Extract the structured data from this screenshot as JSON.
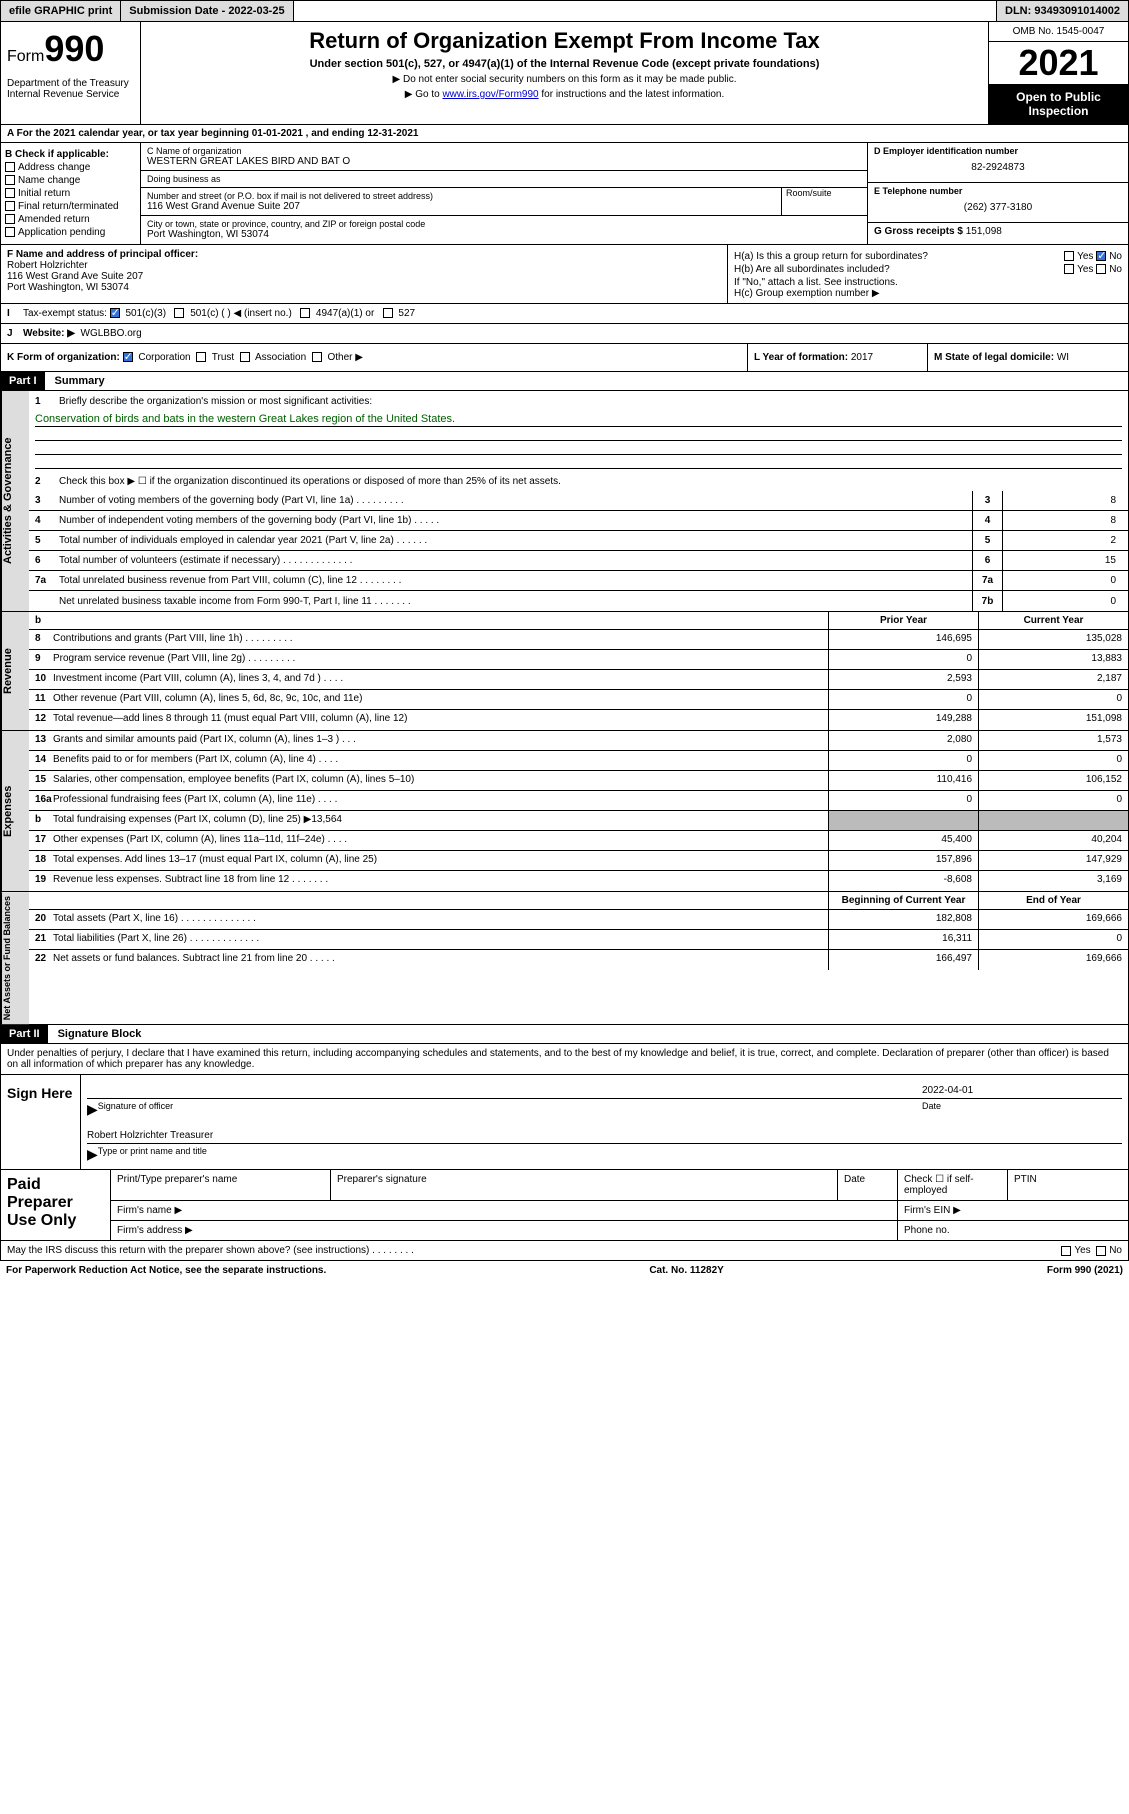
{
  "topbar": {
    "efile": "efile GRAPHIC print",
    "sub_label": "Submission Date - 2022-03-25",
    "dln": "DLN: 93493091014002"
  },
  "header": {
    "form_prefix": "Form",
    "form_num": "990",
    "dept": "Department of the Treasury Internal Revenue Service",
    "title": "Return of Organization Exempt From Income Tax",
    "sub": "Under section 501(c), 527, or 4947(a)(1) of the Internal Revenue Code (except private foundations)",
    "note1": "▶ Do not enter social security numbers on this form as it may be made public.",
    "note2_pre": "▶ Go to ",
    "note2_link": "www.irs.gov/Form990",
    "note2_post": " for instructions and the latest information.",
    "omb": "OMB No. 1545-0047",
    "year": "2021",
    "open": "Open to Public Inspection"
  },
  "row_a": "A For the 2021 calendar year, or tax year beginning 01-01-2021    , and ending 12-31-2021",
  "col_b": {
    "label": "B Check if applicable:",
    "opts": [
      "Address change",
      "Name change",
      "Initial return",
      "Final return/terminated",
      "Amended return",
      "Application pending"
    ]
  },
  "col_c": {
    "name_lbl": "C Name of organization",
    "name": "WESTERN GREAT LAKES BIRD AND BAT O",
    "dba_lbl": "Doing business as",
    "dba": "",
    "addr_lbl": "Number and street (or P.O. box if mail is not delivered to street address)",
    "room_lbl": "Room/suite",
    "addr": "116 West Grand Avenue Suite 207",
    "city_lbl": "City or town, state or province, country, and ZIP or foreign postal code",
    "city": "Port Washington, WI  53074"
  },
  "col_d": {
    "ein_lbl": "D Employer identification number",
    "ein": "82-2924873",
    "tel_lbl": "E Telephone number",
    "tel": "(262) 377-3180",
    "gross_lbl": "G Gross receipts $",
    "gross": "151,098"
  },
  "f": {
    "lbl": "F Name and address of principal officer:",
    "name": "Robert Holzrichter",
    "addr1": "116 West Grand Ave Suite 207",
    "addr2": "Port Washington, WI  53074"
  },
  "h": {
    "a": "H(a)  Is this a group return for subordinates?",
    "b": "H(b)  Are all subordinates included?",
    "b_note": "If \"No,\" attach a list. See instructions.",
    "c": "H(c)  Group exemption number ▶"
  },
  "i": {
    "lbl": "Tax-exempt status:",
    "o1": "501(c)(3)",
    "o2": "501(c) (  ) ◀ (insert no.)",
    "o3": "4947(a)(1) or",
    "o4": "527"
  },
  "j": {
    "lbl": "Website: ▶",
    "val": "WGLBBO.org"
  },
  "k": {
    "lbl": "K Form of organization:",
    "o1": "Corporation",
    "o2": "Trust",
    "o3": "Association",
    "o4": "Other ▶"
  },
  "l": {
    "lbl": "L Year of formation:",
    "val": "2017"
  },
  "m": {
    "lbl": "M State of legal domicile:",
    "val": "WI"
  },
  "part1": {
    "hdr": "Part I",
    "title": "Summary"
  },
  "gov": {
    "tab": "Activities & Governance",
    "l1": "Briefly describe the organization's mission or most significant activities:",
    "mission": "Conservation of birds and bats in the western Great Lakes region of the United States.",
    "l2": "Check this box ▶ ☐  if the organization discontinued its operations or disposed of more than 25% of its net assets.",
    "lines": [
      {
        "n": "3",
        "t": "Number of voting members of the governing body (Part VI, line 1a)   .    .    .    .    .    .    .    .    .",
        "b": "3",
        "v": "8"
      },
      {
        "n": "4",
        "t": "Number of independent voting members of the governing body (Part VI, line 1b)   .    .    .    .    .",
        "b": "4",
        "v": "8"
      },
      {
        "n": "5",
        "t": "Total number of individuals employed in calendar year 2021 (Part V, line 2a)   .    .    .    .    .    .",
        "b": "5",
        "v": "2"
      },
      {
        "n": "6",
        "t": "Total number of volunteers (estimate if necessary)   .    .    .    .    .    .    .    .    .    .    .    .    .",
        "b": "6",
        "v": "15"
      },
      {
        "n": "7a",
        "t": "Total unrelated business revenue from Part VIII, column (C), line 12   .    .    .    .    .    .    .    .",
        "b": "7a",
        "v": "0"
      },
      {
        "n": "",
        "t": "Net unrelated business taxable income from Form 990-T, Part I, line 11   .    .    .    .    .    .    .",
        "b": "7b",
        "v": "0"
      }
    ]
  },
  "rev": {
    "tab": "Revenue",
    "hdr_b": "b",
    "c1": "Prior Year",
    "c2": "Current Year",
    "lines": [
      {
        "n": "8",
        "t": "Contributions and grants (Part VIII, line 1h)   .    .    .    .    .    .    .    .    .",
        "p": "146,695",
        "c": "135,028"
      },
      {
        "n": "9",
        "t": "Program service revenue (Part VIII, line 2g)   .    .    .    .    .    .    .    .    .",
        "p": "0",
        "c": "13,883"
      },
      {
        "n": "10",
        "t": "Investment income (Part VIII, column (A), lines 3, 4, and 7d )   .    .    .    .",
        "p": "2,593",
        "c": "2,187"
      },
      {
        "n": "11",
        "t": "Other revenue (Part VIII, column (A), lines 5, 6d, 8c, 9c, 10c, and 11e)",
        "p": "0",
        "c": "0"
      },
      {
        "n": "12",
        "t": "Total revenue—add lines 8 through 11 (must equal Part VIII, column (A), line 12)",
        "p": "149,288",
        "c": "151,098"
      }
    ]
  },
  "exp": {
    "tab": "Expenses",
    "lines": [
      {
        "n": "13",
        "t": "Grants and similar amounts paid (Part IX, column (A), lines 1–3 )   .    .    .",
        "p": "2,080",
        "c": "1,573"
      },
      {
        "n": "14",
        "t": "Benefits paid to or for members (Part IX, column (A), line 4)   .    .    .    .",
        "p": "0",
        "c": "0"
      },
      {
        "n": "15",
        "t": "Salaries, other compensation, employee benefits (Part IX, column (A), lines 5–10)",
        "p": "110,416",
        "c": "106,152"
      },
      {
        "n": "16a",
        "t": "Professional fundraising fees (Part IX, column (A), line 11e)   .    .    .    .",
        "p": "0",
        "c": "0"
      },
      {
        "n": "b",
        "t": "Total fundraising expenses (Part IX, column (D), line 25) ▶13,564",
        "p": "",
        "c": "",
        "shaded": true
      },
      {
        "n": "17",
        "t": "Other expenses (Part IX, column (A), lines 11a–11d, 11f–24e)   .    .    .    .",
        "p": "45,400",
        "c": "40,204"
      },
      {
        "n": "18",
        "t": "Total expenses. Add lines 13–17 (must equal Part IX, column (A), line 25)",
        "p": "157,896",
        "c": "147,929"
      },
      {
        "n": "19",
        "t": "Revenue less expenses. Subtract line 18 from line 12   .    .    .    .    .    .    .",
        "p": "-8,608",
        "c": "3,169"
      }
    ]
  },
  "net": {
    "tab": "Net Assets or Fund Balances",
    "c1": "Beginning of Current Year",
    "c2": "End of Year",
    "lines": [
      {
        "n": "20",
        "t": "Total assets (Part X, line 16)   .    .    .    .    .    .    .    .    .    .    .    .    .    .",
        "p": "182,808",
        "c": "169,666"
      },
      {
        "n": "21",
        "t": "Total liabilities (Part X, line 26)   .    .    .    .    .    .    .    .    .    .    .    .    .",
        "p": "16,311",
        "c": "0"
      },
      {
        "n": "22",
        "t": "Net assets or fund balances. Subtract line 21 from line 20   .    .    .    .    .",
        "p": "166,497",
        "c": "169,666"
      }
    ]
  },
  "part2": {
    "hdr": "Part II",
    "title": "Signature Block"
  },
  "sig": {
    "intro": "Under penalties of perjury, I declare that I have examined this return, including accompanying schedules and statements, and to the best of my knowledge and belief, it is true, correct, and complete. Declaration of preparer (other than officer) is based on all information of which preparer has any knowledge.",
    "here": "Sign Here",
    "date": "2022-04-01",
    "sig_lbl": "Signature of officer",
    "date_lbl": "Date",
    "name": "Robert Holzrichter  Treasurer",
    "name_lbl": "Type or print name and title"
  },
  "paid": {
    "left": "Paid Preparer Use Only",
    "r1c1": "Print/Type preparer's name",
    "r1c2": "Preparer's signature",
    "r1c3": "Date",
    "r1c4a": "Check ☐ if self-employed",
    "r1c5": "PTIN",
    "r2c1": "Firm's name   ▶",
    "r2c2": "Firm's EIN ▶",
    "r3c1": "Firm's address ▶",
    "r3c2": "Phone no."
  },
  "footer": {
    "q": "May the IRS discuss this return with the preparer shown above? (see instructions)   .    .    .    .    .    .    .    .",
    "yes": "Yes",
    "no": "No",
    "pra": "For Paperwork Reduction Act Notice, see the separate instructions.",
    "cat": "Cat. No. 11282Y",
    "form": "Form 990 (2021)"
  }
}
